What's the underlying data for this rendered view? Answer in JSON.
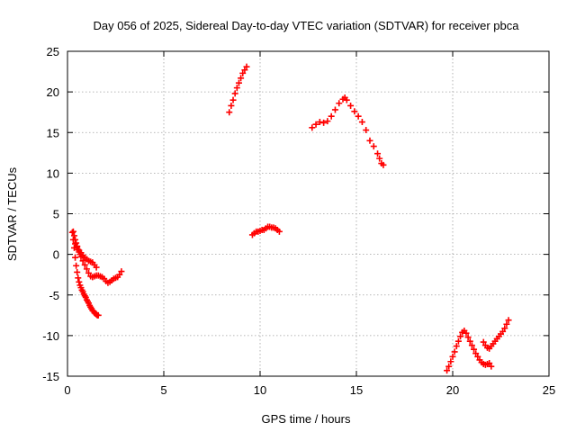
{
  "chart_data": {
    "type": "scatter",
    "title": "Day 056 of 2025, Sidereal Day-to-day VTEC variation (SDTVAR) for receiver pbca",
    "xlabel": "GPS time / hours",
    "ylabel": "SDTVAR / TECUs",
    "xlim": [
      0,
      25
    ],
    "ylim": [
      -15,
      25
    ],
    "xticks": [
      "0",
      "5",
      "10",
      "15",
      "20",
      "25"
    ],
    "yticks": [
      "-15",
      "-10",
      "-5",
      "0",
      "5",
      "10",
      "15",
      "20",
      "25"
    ],
    "grid": true,
    "marker": "+",
    "color": "#ff0000",
    "series": [
      {
        "x": [
          0.25,
          0.3,
          0.35,
          0.4,
          0.45,
          0.5,
          0.55,
          0.6,
          0.65,
          0.7,
          0.75,
          0.8,
          0.85,
          0.9,
          0.95,
          1.0,
          1.05,
          1.1,
          1.15,
          1.2,
          1.25,
          1.3,
          1.35,
          1.4,
          1.45,
          1.5,
          1.55,
          1.6
        ],
        "y": [
          2.7,
          1.8,
          0.8,
          -0.4,
          -1.4,
          -2.2,
          -2.9,
          -3.4,
          -3.8,
          -4.1,
          -4.4,
          -4.6,
          -4.9,
          -5.1,
          -5.3,
          -5.6,
          -5.8,
          -6.0,
          -6.3,
          -6.5,
          -6.7,
          -6.9,
          -7.0,
          -7.2,
          -7.3,
          -7.4,
          -7.5,
          -7.5
        ]
      },
      {
        "x": [
          0.3,
          0.35,
          0.4,
          0.45,
          0.5,
          0.55,
          0.6,
          0.65,
          0.7,
          0.8,
          0.9,
          1.0,
          1.1,
          1.2,
          1.3,
          1.4,
          1.5,
          1.6,
          1.7,
          1.8,
          1.9,
          2.0,
          2.1,
          2.2,
          2.3,
          2.4,
          2.5,
          2.6,
          2.7,
          2.8
        ],
        "y": [
          2.8,
          2.3,
          1.8,
          1.4,
          1.0,
          0.6,
          0.3,
          0.0,
          -0.3,
          -0.8,
          -1.3,
          -1.8,
          -2.3,
          -2.7,
          -2.8,
          -2.7,
          -2.6,
          -2.6,
          -2.7,
          -2.8,
          -3.0,
          -3.3,
          -3.5,
          -3.4,
          -3.2,
          -3.0,
          -2.9,
          -2.8,
          -2.5,
          -2.1
        ]
      },
      {
        "x": [
          0.4,
          0.5,
          0.6,
          0.7,
          0.8,
          0.9,
          1.0,
          1.1,
          1.2,
          1.3,
          1.4,
          1.5
        ],
        "y": [
          1.3,
          0.9,
          0.5,
          0.2,
          -0.1,
          -0.4,
          -0.6,
          -0.8,
          -0.9,
          -1.0,
          -1.3,
          -1.6
        ]
      },
      {
        "x": [
          8.4,
          8.5,
          8.6,
          8.7,
          8.8,
          8.9,
          9.0,
          9.1,
          9.2,
          9.3
        ],
        "y": [
          17.5,
          18.3,
          19.0,
          19.8,
          20.5,
          21.1,
          21.7,
          22.3,
          22.7,
          23.1
        ]
      },
      {
        "x": [
          9.6,
          9.7,
          9.8,
          9.9,
          10.0,
          10.1,
          10.2,
          10.3,
          10.4,
          10.5,
          10.6,
          10.7,
          10.8,
          10.9,
          11.0
        ],
        "y": [
          2.4,
          2.6,
          2.8,
          2.8,
          2.9,
          3.0,
          3.0,
          3.2,
          3.4,
          3.4,
          3.3,
          3.3,
          3.2,
          3.0,
          2.8
        ]
      },
      {
        "x": [
          12.7,
          12.9,
          13.1,
          13.3,
          13.5,
          13.7,
          13.9,
          14.1,
          14.3,
          14.4,
          14.5,
          14.7,
          14.9,
          15.1,
          15.3,
          15.5,
          15.7,
          15.9,
          16.1,
          16.2,
          16.3,
          16.4
        ],
        "y": [
          15.6,
          16.0,
          16.3,
          16.2,
          16.4,
          17.0,
          17.8,
          18.6,
          19.1,
          19.3,
          19.0,
          18.3,
          17.6,
          17.0,
          16.3,
          15.3,
          14.0,
          13.3,
          12.4,
          11.8,
          11.2,
          11.0
        ]
      },
      {
        "x": [
          19.7,
          19.8,
          19.9,
          20.0,
          20.1,
          20.2,
          20.3,
          20.4,
          20.5,
          20.6,
          20.7,
          20.8,
          20.9,
          21.0,
          21.1,
          21.2,
          21.3,
          21.4,
          21.5,
          21.6,
          21.7,
          21.8,
          21.9,
          22.0
        ],
        "y": [
          -14.3,
          -13.8,
          -13.2,
          -12.6,
          -12.0,
          -11.3,
          -10.7,
          -10.1,
          -9.6,
          -9.4,
          -9.7,
          -10.2,
          -10.7,
          -11.2,
          -11.7,
          -12.2,
          -12.6,
          -13.0,
          -13.3,
          -13.5,
          -13.6,
          -13.5,
          -13.4,
          -13.8
        ]
      },
      {
        "x": [
          21.6,
          21.7,
          21.8,
          21.9,
          22.0,
          22.1,
          22.2,
          22.3,
          22.4,
          22.5,
          22.6,
          22.7,
          22.8,
          22.9
        ],
        "y": [
          -10.8,
          -11.2,
          -11.5,
          -11.6,
          -11.3,
          -11.0,
          -10.7,
          -10.4,
          -10.1,
          -9.8,
          -9.5,
          -9.1,
          -8.6,
          -8.1
        ]
      }
    ]
  }
}
